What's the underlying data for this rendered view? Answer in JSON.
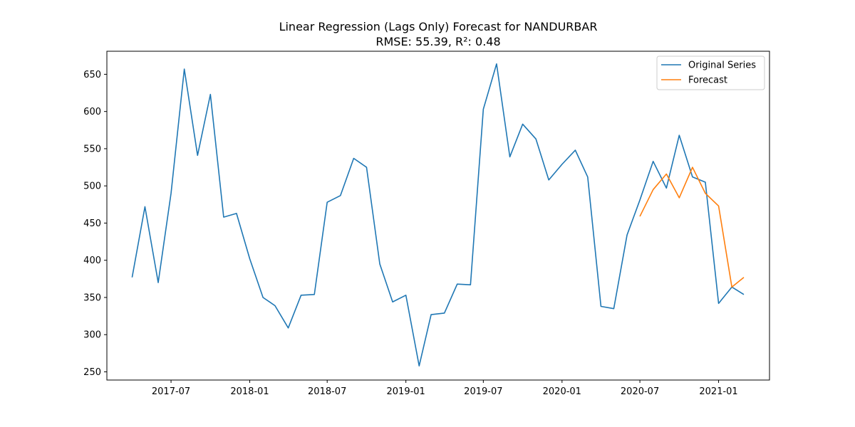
{
  "chart_data": {
    "type": "line",
    "title": "Linear Regression (Lags Only) Forecast for NANDURBAR",
    "subtitle": "RMSE: 55.39, R²: 0.48",
    "xlabel": "",
    "ylabel": "",
    "x_ticks": [
      "2017-07",
      "2018-01",
      "2018-07",
      "2019-01",
      "2019-07",
      "2020-01",
      "2020-07",
      "2021-01"
    ],
    "y_ticks": [
      250,
      300,
      350,
      400,
      450,
      500,
      550,
      600,
      650
    ],
    "xlim": [
      "2017-02-01",
      "2021-04-30"
    ],
    "ylim": [
      239,
      681
    ],
    "grid": false,
    "legend_position": "top-right",
    "series": [
      {
        "name": "Original Series",
        "color": "#1f77b4",
        "x": [
          "2017-04",
          "2017-05",
          "2017-06",
          "2017-07",
          "2017-08",
          "2017-09",
          "2017-10",
          "2017-11",
          "2017-12",
          "2018-01",
          "2018-02",
          "2018-03",
          "2018-04",
          "2018-05",
          "2018-06",
          "2018-07",
          "2018-08",
          "2018-09",
          "2018-10",
          "2018-11",
          "2018-12",
          "2019-01",
          "2019-02",
          "2019-03",
          "2019-04",
          "2019-05",
          "2019-06",
          "2019-07",
          "2019-08",
          "2019-09",
          "2019-10",
          "2019-11",
          "2019-12",
          "2020-01",
          "2020-02",
          "2020-03",
          "2020-04",
          "2020-05",
          "2020-06",
          "2020-07",
          "2020-08",
          "2020-09",
          "2020-10",
          "2020-11",
          "2020-12",
          "2021-01",
          "2021-02",
          "2021-03"
        ],
        "values": [
          377,
          472,
          370,
          490,
          657,
          541,
          623,
          458,
          463,
          402,
          350,
          339,
          309,
          353,
          354,
          478,
          487,
          537,
          525,
          395,
          344,
          353,
          258,
          327,
          329,
          368,
          367,
          603,
          664,
          539,
          583,
          563,
          508,
          529,
          548,
          512,
          338,
          335,
          434,
          481,
          533,
          497,
          568,
          512,
          505,
          342,
          364,
          354
        ]
      },
      {
        "name": "Forecast",
        "color": "#ff7f0e",
        "x": [
          "2020-07",
          "2020-08",
          "2020-09",
          "2020-10",
          "2020-11",
          "2020-12",
          "2021-01",
          "2021-02",
          "2021-03"
        ],
        "values": [
          459,
          495,
          516,
          484,
          525,
          490,
          473,
          364,
          377
        ]
      }
    ]
  }
}
